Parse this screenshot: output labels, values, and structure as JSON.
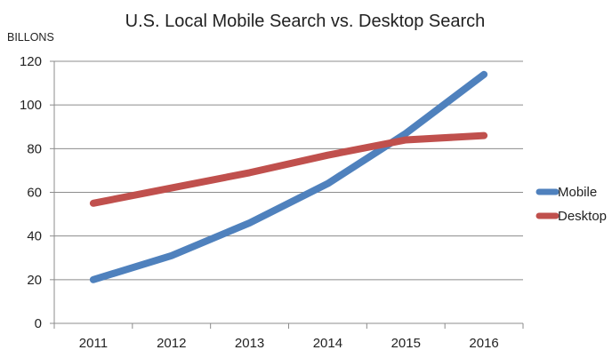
{
  "chart_data": {
    "type": "line",
    "title": "U.S. Local Mobile Search vs. Desktop Search",
    "unit_label": "BILLONS",
    "xlabel": "",
    "ylabel": "",
    "categories": [
      "2011",
      "2012",
      "2013",
      "2014",
      "2015",
      "2016"
    ],
    "ylim": [
      0,
      120
    ],
    "yticks": [
      0,
      20,
      40,
      60,
      80,
      100,
      120
    ],
    "grid": true,
    "legend_position": "right",
    "series": [
      {
        "name": "Mobile",
        "color": "#4f81bd",
        "values": [
          20,
          31,
          46,
          64,
          87,
          114
        ]
      },
      {
        "name": "Desktop",
        "color": "#c0504d",
        "values": [
          55,
          62,
          69,
          77,
          84,
          86
        ]
      }
    ]
  }
}
